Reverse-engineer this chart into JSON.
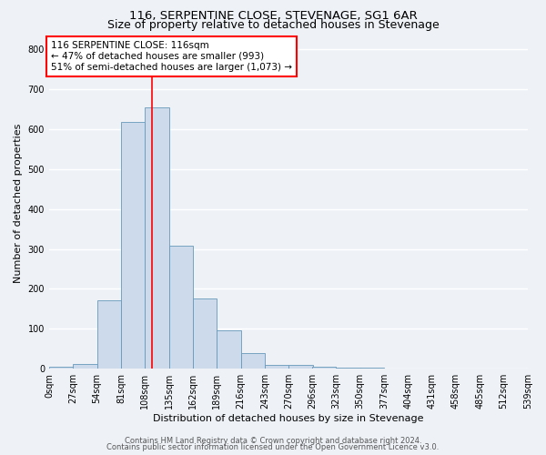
{
  "title": "116, SERPENTINE CLOSE, STEVENAGE, SG1 6AR",
  "subtitle": "Size of property relative to detached houses in Stevenage",
  "xlabel": "Distribution of detached houses by size in Stevenage",
  "ylabel": "Number of detached properties",
  "bin_edges": [
    0,
    27,
    54,
    81,
    108,
    135,
    162,
    189,
    216,
    243,
    270,
    296,
    323,
    350,
    377,
    404,
    431,
    458,
    485,
    512,
    539
  ],
  "bar_heights": [
    5,
    12,
    172,
    617,
    655,
    308,
    175,
    97,
    40,
    10,
    10,
    5,
    2,
    2,
    0,
    0,
    0,
    0,
    0,
    0
  ],
  "bar_color": "#ccdaeb",
  "bar_edge_color": "#6699bb",
  "property_line_x": 116,
  "property_line_color": "red",
  "annotation_line1": "116 SERPENTINE CLOSE: 116sqm",
  "annotation_line2": "← 47% of detached houses are smaller (993)",
  "annotation_line3": "51% of semi-detached houses are larger (1,073) →",
  "annotation_box_color": "white",
  "annotation_box_edge_color": "red",
  "ylim": [
    0,
    830
  ],
  "yticks": [
    0,
    100,
    200,
    300,
    400,
    500,
    600,
    700,
    800
  ],
  "tick_labels": [
    "0sqm",
    "27sqm",
    "54sqm",
    "81sqm",
    "108sqm",
    "135sqm",
    "162sqm",
    "189sqm",
    "216sqm",
    "243sqm",
    "270sqm",
    "296sqm",
    "323sqm",
    "350sqm",
    "377sqm",
    "404sqm",
    "431sqm",
    "458sqm",
    "485sqm",
    "512sqm",
    "539sqm"
  ],
  "footer_line1": "Contains HM Land Registry data © Crown copyright and database right 2024.",
  "footer_line2": "Contains public sector information licensed under the Open Government Licence v3.0.",
  "background_color": "#eef2f7",
  "grid_color": "#ffffff",
  "title_fontsize": 9.5,
  "subtitle_fontsize": 9,
  "axis_label_fontsize": 8,
  "tick_fontsize": 7,
  "annotation_fontsize": 7.5,
  "footer_fontsize": 6
}
